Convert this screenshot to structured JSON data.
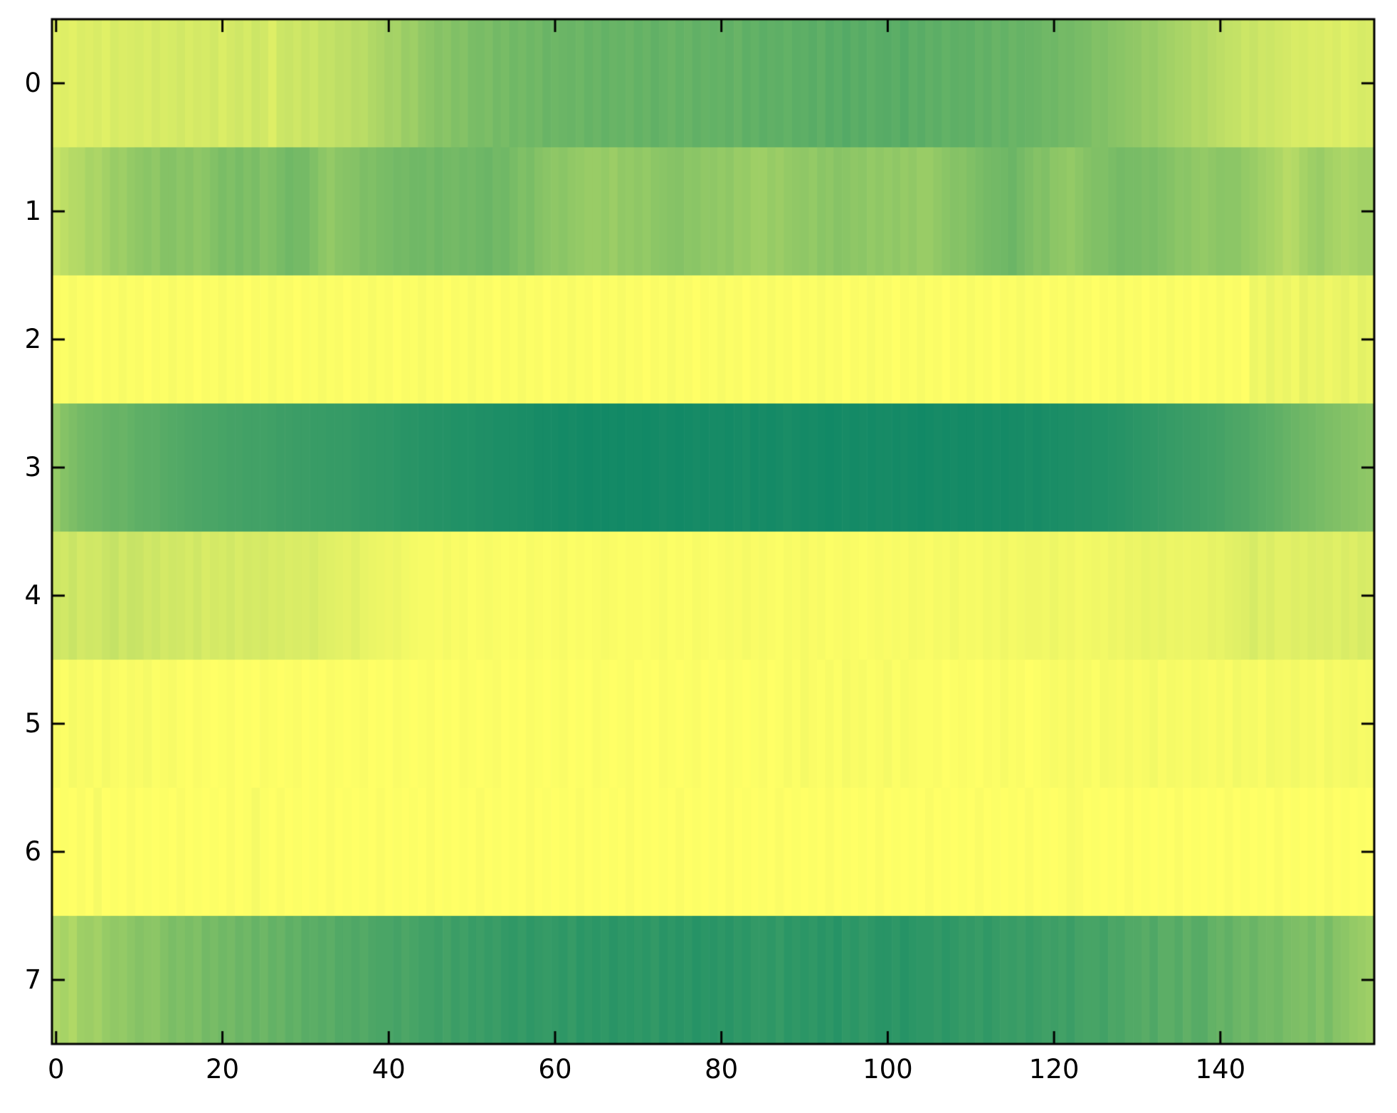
{
  "figure": {
    "background": "#ffffff",
    "axis_color": "#000000",
    "tick_label_color": "#000000"
  },
  "chart_data": {
    "type": "heatmap",
    "title": "",
    "xlabel": "",
    "ylabel": "",
    "grid": false,
    "legend": "none",
    "colorbar": "none",
    "colormap": "summer",
    "colormap_endpoints": {
      "low": "#008066",
      "high": "#ffff66"
    },
    "value_scale": "normalized color intensity 0-1 (0 = dark teal, 1 = bright yellow)",
    "n_rows": 8,
    "n_cols": 159,
    "x_range": [
      -0.5,
      158.5
    ],
    "y_range": [
      -0.5,
      7.5
    ],
    "x_ticks": [
      0,
      20,
      40,
      60,
      80,
      100,
      120,
      140
    ],
    "x_tick_labels": [
      "0",
      "20",
      "40",
      "60",
      "80",
      "100",
      "120",
      "140"
    ],
    "y_ticks": [
      0,
      1,
      2,
      3,
      4,
      5,
      6,
      7
    ],
    "y_tick_labels": [
      "0",
      "1",
      "2",
      "3",
      "4",
      "5",
      "6",
      "7"
    ],
    "rows": [
      [
        0.88,
        0.87,
        0.89,
        0.86,
        0.87,
        0.85,
        0.88,
        0.84,
        0.86,
        0.85,
        0.84,
        0.86,
        0.83,
        0.85,
        0.84,
        0.82,
        0.85,
        0.83,
        0.84,
        0.82,
        0.86,
        0.83,
        0.81,
        0.84,
        0.8,
        0.82,
        0.87,
        0.8,
        0.79,
        0.81,
        0.78,
        0.8,
        0.76,
        0.77,
        0.74,
        0.75,
        0.72,
        0.73,
        0.69,
        0.67,
        0.64,
        0.65,
        0.6,
        0.62,
        0.57,
        0.55,
        0.52,
        0.54,
        0.5,
        0.52,
        0.48,
        0.47,
        0.49,
        0.45,
        0.47,
        0.44,
        0.46,
        0.43,
        0.45,
        0.41,
        0.43,
        0.42,
        0.41,
        0.43,
        0.4,
        0.42,
        0.39,
        0.41,
        0.4,
        0.42,
        0.39,
        0.41,
        0.38,
        0.4,
        0.42,
        0.39,
        0.41,
        0.38,
        0.4,
        0.39,
        0.4,
        0.38,
        0.41,
        0.37,
        0.39,
        0.36,
        0.38,
        0.37,
        0.39,
        0.36,
        0.37,
        0.35,
        0.38,
        0.34,
        0.36,
        0.33,
        0.36,
        0.34,
        0.37,
        0.35,
        0.34,
        0.36,
        0.33,
        0.37,
        0.35,
        0.38,
        0.36,
        0.39,
        0.37,
        0.38,
        0.37,
        0.4,
        0.38,
        0.41,
        0.39,
        0.42,
        0.4,
        0.41,
        0.42,
        0.44,
        0.43,
        0.46,
        0.45,
        0.47,
        0.48,
        0.51,
        0.5,
        0.53,
        0.54,
        0.56,
        0.57,
        0.6,
        0.59,
        0.62,
        0.64,
        0.66,
        0.67,
        0.7,
        0.69,
        0.72,
        0.74,
        0.76,
        0.77,
        0.8,
        0.78,
        0.81,
        0.8,
        0.82,
        0.83,
        0.85,
        0.84,
        0.86,
        0.85,
        0.87,
        0.85,
        0.88,
        0.86,
        0.84,
        0.85
      ],
      [
        0.78,
        0.74,
        0.71,
        0.7,
        0.66,
        0.68,
        0.64,
        0.6,
        0.62,
        0.58,
        0.56,
        0.54,
        0.57,
        0.52,
        0.52,
        0.55,
        0.53,
        0.56,
        0.54,
        0.51,
        0.48,
        0.5,
        0.47,
        0.5,
        0.48,
        0.52,
        0.5,
        0.47,
        0.44,
        0.46,
        0.46,
        0.5,
        0.55,
        0.58,
        0.54,
        0.53,
        0.52,
        0.49,
        0.5,
        0.48,
        0.47,
        0.45,
        0.46,
        0.44,
        0.44,
        0.46,
        0.43,
        0.45,
        0.46,
        0.44,
        0.45,
        0.43,
        0.42,
        0.45,
        0.44,
        0.47,
        0.5,
        0.48,
        0.52,
        0.54,
        0.56,
        0.54,
        0.57,
        0.58,
        0.6,
        0.6,
        0.58,
        0.61,
        0.57,
        0.58,
        0.56,
        0.58,
        0.55,
        0.54,
        0.53,
        0.52,
        0.55,
        0.54,
        0.57,
        0.56,
        0.58,
        0.56,
        0.6,
        0.59,
        0.62,
        0.62,
        0.59,
        0.61,
        0.58,
        0.57,
        0.56,
        0.58,
        0.54,
        0.56,
        0.53,
        0.54,
        0.56,
        0.55,
        0.58,
        0.56,
        0.58,
        0.56,
        0.59,
        0.57,
        0.6,
        0.6,
        0.57,
        0.54,
        0.52,
        0.53,
        0.5,
        0.48,
        0.46,
        0.45,
        0.44,
        0.42,
        0.46,
        0.49,
        0.52,
        0.5,
        0.55,
        0.56,
        0.58,
        0.55,
        0.52,
        0.5,
        0.5,
        0.48,
        0.46,
        0.47,
        0.47,
        0.49,
        0.48,
        0.5,
        0.52,
        0.55,
        0.54,
        0.57,
        0.58,
        0.56,
        0.54,
        0.55,
        0.55,
        0.58,
        0.6,
        0.63,
        0.65,
        0.68,
        0.72,
        0.7,
        0.65,
        0.62,
        0.6,
        0.64,
        0.66,
        0.68,
        0.66,
        0.64,
        0.64
      ],
      [
        0.98,
        0.99,
        0.97,
        0.99,
        0.98,
        1.0,
        0.98,
        0.99,
        0.97,
        0.99,
        0.98,
        1.0,
        0.98,
        0.99,
        0.97,
        0.99,
        0.98,
        1.0,
        0.98,
        0.99,
        0.97,
        0.99,
        0.98,
        1.0,
        0.98,
        0.99,
        0.97,
        0.99,
        0.98,
        1.0,
        0.98,
        0.99,
        0.97,
        0.99,
        0.98,
        1.0,
        0.98,
        0.99,
        0.97,
        0.99,
        0.98,
        1.0,
        0.98,
        0.99,
        0.97,
        0.99,
        0.98,
        1.0,
        0.98,
        0.99,
        0.97,
        0.99,
        0.98,
        1.0,
        0.98,
        0.99,
        0.97,
        0.99,
        0.98,
        1.0,
        0.98,
        0.99,
        0.97,
        0.99,
        0.98,
        1.0,
        0.98,
        0.99,
        0.97,
        0.99,
        0.98,
        1.0,
        0.98,
        0.99,
        0.97,
        0.99,
        0.98,
        1.0,
        0.98,
        0.99,
        0.97,
        0.99,
        0.98,
        1.0,
        0.98,
        0.99,
        0.97,
        0.99,
        0.98,
        1.0,
        0.98,
        0.99,
        0.97,
        0.99,
        0.98,
        1.0,
        0.98,
        0.99,
        0.97,
        0.99,
        0.98,
        1.0,
        0.98,
        0.99,
        0.97,
        0.99,
        0.98,
        1.0,
        0.98,
        0.99,
        0.97,
        0.99,
        0.98,
        1.0,
        0.98,
        0.99,
        0.97,
        0.99,
        0.98,
        1.0,
        0.98,
        0.99,
        0.97,
        0.99,
        0.98,
        1.0,
        0.98,
        0.99,
        0.97,
        0.99,
        0.98,
        1.0,
        0.98,
        0.99,
        0.97,
        0.99,
        0.98,
        1.0,
        0.98,
        0.99,
        0.97,
        0.99,
        0.98,
        1.0,
        0.93,
        0.95,
        0.91,
        0.94,
        0.92,
        0.95,
        0.9,
        0.93,
        0.91,
        0.94,
        0.92,
        0.9,
        0.93,
        0.89,
        0.91
      ],
      [
        0.58,
        0.52,
        0.49,
        0.46,
        0.44,
        0.43,
        0.41,
        0.4,
        0.41,
        0.39,
        0.37,
        0.36,
        0.36,
        0.34,
        0.33,
        0.32,
        0.31,
        0.3,
        0.29,
        0.29,
        0.28,
        0.27,
        0.27,
        0.26,
        0.26,
        0.26,
        0.25,
        0.24,
        0.24,
        0.23,
        0.23,
        0.22,
        0.22,
        0.21,
        0.21,
        0.21,
        0.2,
        0.19,
        0.19,
        0.18,
        0.18,
        0.17,
        0.16,
        0.16,
        0.15,
        0.15,
        0.14,
        0.14,
        0.13,
        0.13,
        0.13,
        0.12,
        0.12,
        0.11,
        0.11,
        0.11,
        0.1,
        0.1,
        0.09,
        0.09,
        0.09,
        0.08,
        0.09,
        0.08,
        0.07,
        0.08,
        0.07,
        0.08,
        0.07,
        0.08,
        0.08,
        0.07,
        0.08,
        0.09,
        0.08,
        0.07,
        0.08,
        0.09,
        0.08,
        0.09,
        0.09,
        0.08,
        0.09,
        0.1,
        0.08,
        0.09,
        0.08,
        0.09,
        0.1,
        0.09,
        0.08,
        0.09,
        0.08,
        0.07,
        0.08,
        0.09,
        0.08,
        0.09,
        0.08,
        0.09,
        0.09,
        0.08,
        0.09,
        0.08,
        0.07,
        0.08,
        0.09,
        0.08,
        0.09,
        0.08,
        0.08,
        0.09,
        0.08,
        0.09,
        0.08,
        0.09,
        0.09,
        0.1,
        0.09,
        0.1,
        0.1,
        0.11,
        0.11,
        0.12,
        0.12,
        0.13,
        0.13,
        0.14,
        0.15,
        0.16,
        0.17,
        0.18,
        0.19,
        0.2,
        0.21,
        0.22,
        0.23,
        0.24,
        0.25,
        0.26,
        0.27,
        0.29,
        0.3,
        0.31,
        0.33,
        0.35,
        0.36,
        0.38,
        0.4,
        0.42,
        0.44,
        0.45,
        0.47,
        0.49,
        0.5,
        0.52,
        0.53,
        0.55,
        0.56
      ],
      [
        0.8,
        0.82,
        0.79,
        0.83,
        0.81,
        0.82,
        0.79,
        0.77,
        0.81,
        0.78,
        0.79,
        0.82,
        0.8,
        0.83,
        0.81,
        0.82,
        0.84,
        0.81,
        0.85,
        0.83,
        0.84,
        0.82,
        0.85,
        0.83,
        0.84,
        0.83,
        0.85,
        0.84,
        0.86,
        0.85,
        0.86,
        0.84,
        0.87,
        0.88,
        0.89,
        0.9,
        0.88,
        0.91,
        0.92,
        0.93,
        0.94,
        0.93,
        0.95,
        0.96,
        0.97,
        0.97,
        0.98,
        0.96,
        0.98,
        0.97,
        0.99,
        0.98,
        0.97,
        0.98,
        0.99,
        0.98,
        0.99,
        0.97,
        0.98,
        0.99,
        0.98,
        0.97,
        0.99,
        0.98,
        0.99,
        0.98,
        0.97,
        0.98,
        0.99,
        0.98,
        0.98,
        0.99,
        0.98,
        0.97,
        0.99,
        0.98,
        0.99,
        0.97,
        0.98,
        0.99,
        0.98,
        0.97,
        0.98,
        0.96,
        0.98,
        0.97,
        0.98,
        0.99,
        0.97,
        0.98,
        0.96,
        0.98,
        0.97,
        0.99,
        0.98,
        0.97,
        0.98,
        0.99,
        0.98,
        0.97,
        0.98,
        0.97,
        0.98,
        0.96,
        0.97,
        0.98,
        0.96,
        0.97,
        0.95,
        0.97,
        0.96,
        0.97,
        0.95,
        0.96,
        0.94,
        0.96,
        0.95,
        0.94,
        0.94,
        0.95,
        0.93,
        0.95,
        0.94,
        0.96,
        0.95,
        0.94,
        0.95,
        0.93,
        0.94,
        0.92,
        0.93,
        0.91,
        0.92,
        0.91,
        0.93,
        0.92,
        0.93,
        0.92,
        0.92,
        0.9,
        0.91,
        0.89,
        0.88,
        0.87,
        0.84,
        0.88,
        0.86,
        0.89,
        0.89,
        0.87,
        0.88,
        0.86,
        0.87,
        0.86,
        0.88,
        0.85,
        0.87,
        0.84,
        0.85
      ],
      [
        0.97,
        0.99,
        0.96,
        0.98,
        0.97,
        0.99,
        0.96,
        0.98,
        0.99,
        0.97,
        0.98,
        0.96,
        0.99,
        0.98,
        0.97,
        0.99,
        1.0,
        0.98,
        0.99,
        1.0,
        0.99,
        0.98,
        1.0,
        0.99,
        1.0,
        0.98,
        0.99,
        1.0,
        0.99,
        0.98,
        1.0,
        0.99,
        1.0,
        0.98,
        0.99,
        1.0,
        0.99,
        0.98,
        1.0,
        0.99,
        1.0,
        0.98,
        0.99,
        1.0,
        0.99,
        0.98,
        1.0,
        0.99,
        1.0,
        0.98,
        0.99,
        1.0,
        0.99,
        0.98,
        1.0,
        0.99,
        1.0,
        0.98,
        0.99,
        1.0,
        0.99,
        0.98,
        1.0,
        0.99,
        1.0,
        0.98,
        0.99,
        1.0,
        0.99,
        0.98,
        1.0,
        0.99,
        1.0,
        0.98,
        0.99,
        1.0,
        0.99,
        0.98,
        1.0,
        0.99,
        1.0,
        0.98,
        0.99,
        1.0,
        0.99,
        0.98,
        1.0,
        0.99,
        0.97,
        0.99,
        0.96,
        0.98,
        0.99,
        0.97,
        0.99,
        0.96,
        0.98,
        0.97,
        0.99,
        0.98,
        0.96,
        0.99,
        0.97,
        0.98,
        0.99,
        0.99,
        0.98,
        1.0,
        0.99,
        0.98,
        0.99,
        1.0,
        0.98,
        0.99,
        0.97,
        0.99,
        0.98,
        1.0,
        0.99,
        0.98,
        0.97,
        0.98,
        0.96,
        0.98,
        0.97,
        0.99,
        0.96,
        0.97,
        0.98,
        0.96,
        0.98,
        0.97,
        0.95,
        0.98,
        0.96,
        0.97,
        0.98,
        0.96,
        0.97,
        0.98,
        0.96,
        0.98,
        0.95,
        0.97,
        0.96,
        0.98,
        0.95,
        0.96,
        0.97,
        0.95,
        0.97,
        0.96,
        0.98,
        0.95,
        0.97,
        0.96,
        0.95,
        0.97,
        0.96
      ],
      [
        1.0,
        0.99,
        1.0,
        0.98,
        1.0,
        0.96,
        1.0,
        0.99,
        1.0,
        0.98,
        1.0,
        0.99,
        1.0,
        0.99,
        1.0,
        0.98,
        1.0,
        0.99,
        1.0,
        0.99,
        1.0,
        0.98,
        1.0,
        0.99,
        0.96,
        0.99,
        1.0,
        0.98,
        1.0,
        0.99,
        1.0,
        0.99,
        1.0,
        0.98,
        1.0,
        0.99,
        1.0,
        0.99,
        1.0,
        0.98,
        1.0,
        0.99,
        1.0,
        0.99,
        1.0,
        0.98,
        1.0,
        0.99,
        1.0,
        0.99,
        1.0,
        0.98,
        1.0,
        0.99,
        1.0,
        0.99,
        1.0,
        0.98,
        1.0,
        0.99,
        1.0,
        0.99,
        1.0,
        0.98,
        1.0,
        0.99,
        1.0,
        0.99,
        1.0,
        0.98,
        1.0,
        0.99,
        1.0,
        0.99,
        1.0,
        0.98,
        1.0,
        0.99,
        1.0,
        0.99,
        1.0,
        0.98,
        1.0,
        0.99,
        1.0,
        0.99,
        1.0,
        0.98,
        1.0,
        0.99,
        1.0,
        0.99,
        1.0,
        0.98,
        1.0,
        0.99,
        1.0,
        0.99,
        1.0,
        0.98,
        1.0,
        0.99,
        1.0,
        0.99,
        1.0,
        0.98,
        1.0,
        0.99,
        1.0,
        0.99,
        1.0,
        0.98,
        1.0,
        0.99,
        1.0,
        0.99,
        1.0,
        0.98,
        1.0,
        0.99,
        1.0,
        0.99,
        0.97,
        0.98,
        1.0,
        0.99,
        1.0,
        0.99,
        1.0,
        0.98,
        1.0,
        0.99,
        1.0,
        0.99,
        1.0,
        0.98,
        1.0,
        0.99,
        1.0,
        0.99,
        1.0,
        0.98,
        1.0,
        0.99,
        1.0,
        0.99,
        1.0,
        0.98,
        1.0,
        0.99,
        1.0,
        0.99,
        1.0,
        0.98,
        1.0,
        0.99,
        1.0,
        0.99,
        1.0
      ],
      [
        0.68,
        0.65,
        0.69,
        0.62,
        0.61,
        0.64,
        0.59,
        0.57,
        0.58,
        0.55,
        0.52,
        0.54,
        0.55,
        0.51,
        0.48,
        0.5,
        0.48,
        0.5,
        0.45,
        0.47,
        0.44,
        0.46,
        0.42,
        0.44,
        0.4,
        0.43,
        0.39,
        0.41,
        0.37,
        0.39,
        0.35,
        0.36,
        0.34,
        0.36,
        0.32,
        0.33,
        0.31,
        0.33,
        0.3,
        0.29,
        0.29,
        0.27,
        0.3,
        0.28,
        0.26,
        0.26,
        0.24,
        0.27,
        0.23,
        0.25,
        0.22,
        0.24,
        0.21,
        0.23,
        0.2,
        0.19,
        0.21,
        0.18,
        0.2,
        0.21,
        0.2,
        0.18,
        0.21,
        0.17,
        0.19,
        0.17,
        0.19,
        0.16,
        0.18,
        0.17,
        0.19,
        0.17,
        0.2,
        0.16,
        0.18,
        0.16,
        0.18,
        0.15,
        0.17,
        0.16,
        0.18,
        0.16,
        0.19,
        0.17,
        0.2,
        0.2,
        0.18,
        0.21,
        0.17,
        0.19,
        0.17,
        0.19,
        0.16,
        0.18,
        0.15,
        0.19,
        0.17,
        0.2,
        0.18,
        0.16,
        0.16,
        0.18,
        0.15,
        0.17,
        0.18,
        0.18,
        0.2,
        0.17,
        0.19,
        0.21,
        0.2,
        0.22,
        0.19,
        0.21,
        0.23,
        0.22,
        0.24,
        0.21,
        0.23,
        0.25,
        0.24,
        0.26,
        0.23,
        0.27,
        0.28,
        0.28,
        0.26,
        0.3,
        0.29,
        0.32,
        0.32,
        0.35,
        0.31,
        0.36,
        0.36,
        0.33,
        0.38,
        0.34,
        0.34,
        0.39,
        0.41,
        0.38,
        0.42,
        0.44,
        0.41,
        0.45,
        0.46,
        0.44,
        0.48,
        0.49,
        0.5,
        0.47,
        0.52,
        0.47,
        0.53,
        0.55,
        0.58,
        0.6,
        0.62
      ]
    ]
  }
}
